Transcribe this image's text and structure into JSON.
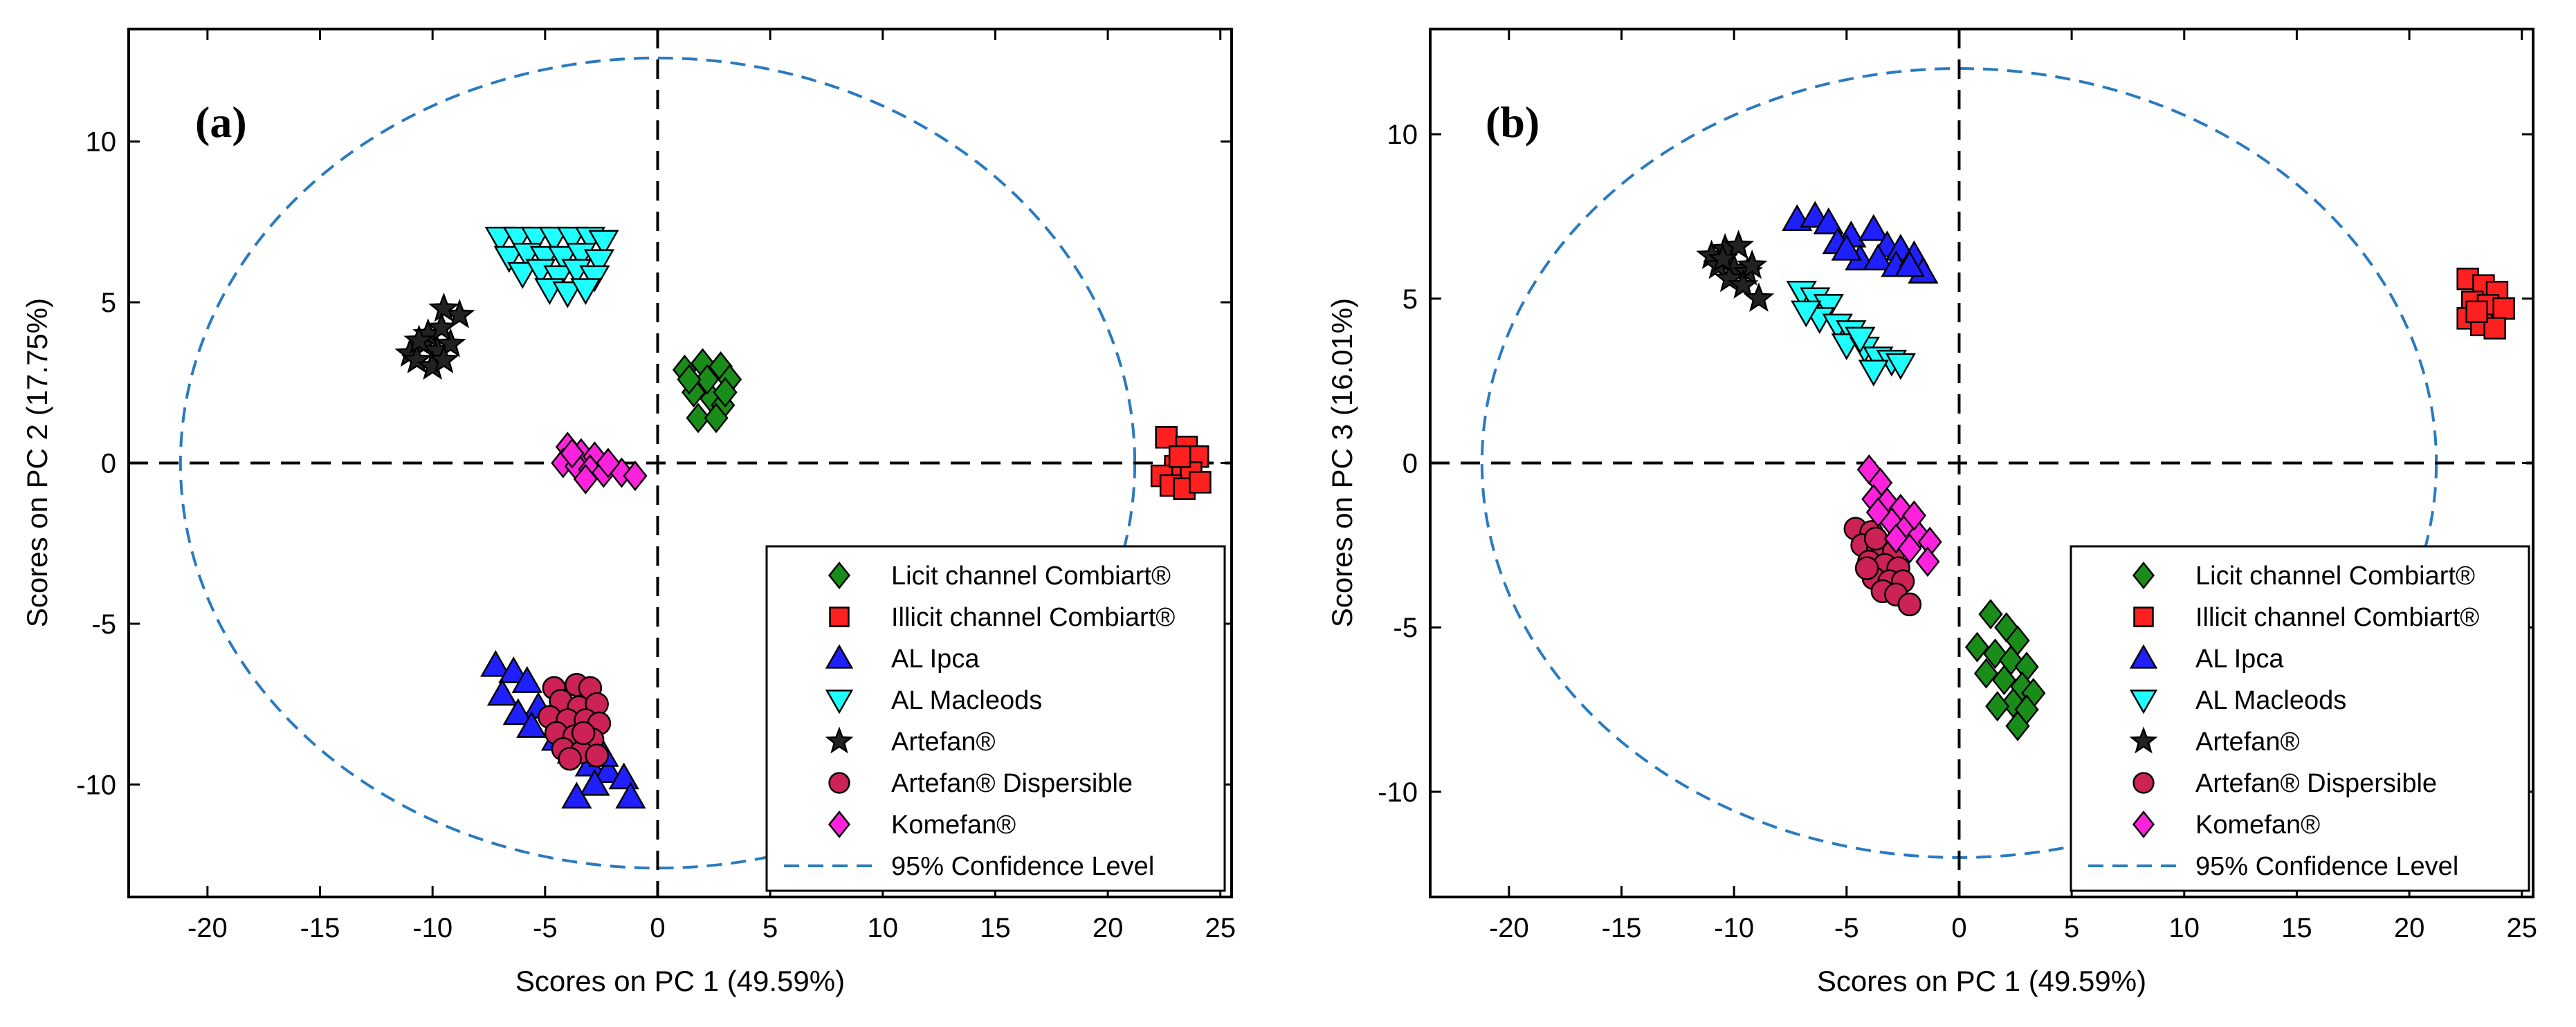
{
  "chart_data": [
    {
      "type": "scatter",
      "panel_label": "(a)",
      "xlabel": "Scores on PC 1 (49.59%)",
      "ylabel": "Scores on PC 2 (17.75%)",
      "xlim": [
        -23.5,
        25.5
      ],
      "ylim": [
        -13.5,
        13.5
      ],
      "xticks": [
        -20,
        -15,
        -10,
        -5,
        0,
        5,
        10,
        15,
        20,
        25
      ],
      "yticks": [
        -10,
        -5,
        0,
        5,
        10
      ],
      "ellipse": {
        "name": "95% Confidence Level",
        "cx": 0,
        "cy": 0,
        "rx": 21.2,
        "ry": 12.6
      },
      "series": [
        {
          "name": "Licit channel Combiart®",
          "marker": "diamond",
          "color": "#1a8c1a",
          "points": [
            [
              1.2,
              2.9
            ],
            [
              2.0,
              3.1
            ],
            [
              2.8,
              3.0
            ],
            [
              3.2,
              2.6
            ],
            [
              1.6,
              2.2
            ],
            [
              2.4,
              2.0
            ],
            [
              2.9,
              1.8
            ],
            [
              1.8,
              1.4
            ],
            [
              2.6,
              1.4
            ],
            [
              2.2,
              2.6
            ],
            [
              1.4,
              2.6
            ],
            [
              3.0,
              2.2
            ]
          ]
        },
        {
          "name": "Illicit channel Combiart®",
          "marker": "square",
          "color": "#ff2020",
          "points": [
            [
              22.6,
              0.8
            ],
            [
              23.5,
              0.5
            ],
            [
              24.0,
              0.2
            ],
            [
              23.0,
              -0.1
            ],
            [
              22.4,
              -0.4
            ],
            [
              23.7,
              -0.3
            ],
            [
              22.8,
              -0.7
            ],
            [
              23.4,
              -0.8
            ],
            [
              24.1,
              -0.6
            ],
            [
              23.2,
              0.2
            ]
          ]
        },
        {
          "name": "AL Ipca",
          "marker": "triangle-up",
          "color": "#2020ff",
          "points": [
            [
              -7.2,
              -6.3
            ],
            [
              -6.4,
              -6.5
            ],
            [
              -5.8,
              -6.8
            ],
            [
              -6.9,
              -7.2
            ],
            [
              -5.3,
              -7.6
            ],
            [
              -6.2,
              -7.8
            ],
            [
              -5.6,
              -8.2
            ],
            [
              -4.5,
              -8.6
            ],
            [
              -3.8,
              -9.0
            ],
            [
              -3.0,
              -9.4
            ],
            [
              -2.2,
              -9.6
            ],
            [
              -1.5,
              -9.8
            ],
            [
              -2.8,
              -10.0
            ],
            [
              -1.2,
              -10.4
            ],
            [
              -3.6,
              -10.4
            ],
            [
              -2.4,
              -9.1
            ]
          ]
        },
        {
          "name": "AL Macleods",
          "marker": "triangle-down",
          "color": "#20ffff",
          "points": [
            [
              -7.0,
              7.0
            ],
            [
              -6.2,
              7.0
            ],
            [
              -5.4,
              7.0
            ],
            [
              -4.6,
              7.0
            ],
            [
              -3.8,
              7.0
            ],
            [
              -3.0,
              7.0
            ],
            [
              -2.4,
              6.9
            ],
            [
              -6.6,
              6.4
            ],
            [
              -5.8,
              6.5
            ],
            [
              -5.0,
              6.4
            ],
            [
              -4.2,
              6.4
            ],
            [
              -3.4,
              6.5
            ],
            [
              -2.6,
              6.3
            ],
            [
              -6.0,
              5.9
            ],
            [
              -5.2,
              6.0
            ],
            [
              -4.4,
              5.8
            ],
            [
              -3.6,
              6.0
            ],
            [
              -2.8,
              5.8
            ],
            [
              -4.8,
              5.4
            ],
            [
              -4.0,
              5.3
            ],
            [
              -3.2,
              5.4
            ]
          ]
        },
        {
          "name": "Artefan®",
          "marker": "star",
          "color": "#222222",
          "points": [
            [
              -11.0,
              3.4
            ],
            [
              -10.4,
              3.7
            ],
            [
              -9.8,
              3.5
            ],
            [
              -9.2,
              3.7
            ],
            [
              -10.7,
              3.2
            ],
            [
              -10.0,
              3.0
            ],
            [
              -9.5,
              3.2
            ],
            [
              -8.8,
              4.6
            ],
            [
              -9.5,
              4.8
            ],
            [
              -10.2,
              4.0
            ],
            [
              -10.6,
              3.8
            ],
            [
              -9.6,
              4.2
            ]
          ]
        },
        {
          "name": "Artefan® Dispersible",
          "marker": "circle",
          "color": "#cc2255",
          "points": [
            [
              -4.6,
              -7.0
            ],
            [
              -3.6,
              -6.9
            ],
            [
              -3.0,
              -7.0
            ],
            [
              -4.3,
              -7.4
            ],
            [
              -3.5,
              -7.6
            ],
            [
              -2.7,
              -7.5
            ],
            [
              -4.8,
              -7.9
            ],
            [
              -4.0,
              -8.0
            ],
            [
              -3.2,
              -8.0
            ],
            [
              -2.6,
              -8.1
            ],
            [
              -4.5,
              -8.4
            ],
            [
              -3.7,
              -8.5
            ],
            [
              -2.9,
              -8.6
            ],
            [
              -4.2,
              -8.9
            ],
            [
              -3.4,
              -9.0
            ],
            [
              -2.7,
              -9.1
            ],
            [
              -3.9,
              -9.2
            ],
            [
              -3.3,
              -8.4
            ]
          ]
        },
        {
          "name": "Komefan®",
          "marker": "diamond",
          "color": "#ff22dd",
          "points": [
            [
              -4.0,
              0.5
            ],
            [
              -3.4,
              0.3
            ],
            [
              -2.8,
              0.2
            ],
            [
              -4.2,
              0.0
            ],
            [
              -3.6,
              -0.1
            ],
            [
              -3.0,
              -0.2
            ],
            [
              -2.4,
              -0.3
            ],
            [
              -1.6,
              -0.3
            ],
            [
              -1.0,
              -0.4
            ],
            [
              -3.2,
              -0.5
            ],
            [
              -3.8,
              0.3
            ],
            [
              -2.2,
              0.0
            ]
          ]
        }
      ]
    },
    {
      "type": "scatter",
      "panel_label": "(b)",
      "xlabel": "Scores on PC 1 (49.59%)",
      "ylabel": "Scores on PC 3 (16.01%)",
      "xlim": [
        -23.5,
        25.5
      ],
      "ylim": [
        -13.2,
        13.2
      ],
      "xticks": [
        -20,
        -15,
        -10,
        -5,
        0,
        5,
        10,
        15,
        20,
        25
      ],
      "yticks": [
        -10,
        -5,
        0,
        5,
        10
      ],
      "ellipse": {
        "name": "95% Confidence Level",
        "cx": 0,
        "cy": 0,
        "rx": 21.2,
        "ry": 12.0
      },
      "series": [
        {
          "name": "Licit channel Combiart®",
          "marker": "diamond",
          "color": "#1a8c1a",
          "points": [
            [
              1.4,
              -4.6
            ],
            [
              2.1,
              -5.0
            ],
            [
              2.6,
              -5.4
            ],
            [
              0.8,
              -5.6
            ],
            [
              1.6,
              -5.8
            ],
            [
              2.3,
              -6.0
            ],
            [
              3.0,
              -6.2
            ],
            [
              1.2,
              -6.4
            ],
            [
              2.0,
              -6.6
            ],
            [
              2.8,
              -6.8
            ],
            [
              3.3,
              -7.0
            ],
            [
              2.4,
              -7.3
            ],
            [
              1.7,
              -7.4
            ],
            [
              3.0,
              -7.5
            ],
            [
              2.6,
              -8.0
            ]
          ]
        },
        {
          "name": "Illicit channel Combiart®",
          "marker": "square",
          "color": "#ff2020",
          "points": [
            [
              22.6,
              5.6
            ],
            [
              23.3,
              5.4
            ],
            [
              23.9,
              5.2
            ],
            [
              22.8,
              4.9
            ],
            [
              23.5,
              4.8
            ],
            [
              24.2,
              4.7
            ],
            [
              22.6,
              4.4
            ],
            [
              23.2,
              4.2
            ],
            [
              23.8,
              4.1
            ],
            [
              23.0,
              4.6
            ]
          ]
        },
        {
          "name": "AL Ipca",
          "marker": "triangle-up",
          "color": "#2020ff",
          "points": [
            [
              -7.2,
              7.4
            ],
            [
              -6.4,
              7.5
            ],
            [
              -5.8,
              7.3
            ],
            [
              -4.8,
              6.9
            ],
            [
              -3.8,
              7.1
            ],
            [
              -3.2,
              6.6
            ],
            [
              -2.6,
              6.5
            ],
            [
              -5.4,
              6.7
            ],
            [
              -4.4,
              6.2
            ],
            [
              -3.6,
              6.2
            ],
            [
              -2.8,
              6.0
            ],
            [
              -2.0,
              6.3
            ],
            [
              -1.6,
              5.8
            ],
            [
              -2.2,
              6.0
            ],
            [
              -5.0,
              6.5
            ]
          ]
        },
        {
          "name": "AL Macleods",
          "marker": "triangle-down",
          "color": "#20ffff",
          "points": [
            [
              -7.0,
              5.2
            ],
            [
              -6.4,
              5.0
            ],
            [
              -5.8,
              4.8
            ],
            [
              -6.2,
              4.4
            ],
            [
              -5.4,
              4.2
            ],
            [
              -4.8,
              4.0
            ],
            [
              -5.0,
              3.6
            ],
            [
              -4.2,
              3.5
            ],
            [
              -3.6,
              3.2
            ],
            [
              -3.0,
              3.1
            ],
            [
              -2.6,
              3.0
            ],
            [
              -3.8,
              2.8
            ],
            [
              -4.4,
              3.8
            ],
            [
              -6.8,
              4.6
            ]
          ]
        },
        {
          "name": "Artefan®",
          "marker": "star",
          "color": "#222222",
          "points": [
            [
              -11.0,
              6.3
            ],
            [
              -10.4,
              6.5
            ],
            [
              -9.8,
              6.6
            ],
            [
              -10.7,
              6.0
            ],
            [
              -10.0,
              5.9
            ],
            [
              -9.4,
              5.8
            ],
            [
              -10.2,
              5.6
            ],
            [
              -9.6,
              5.4
            ],
            [
              -8.9,
              5.0
            ],
            [
              -9.2,
              6.0
            ],
            [
              -10.5,
              6.2
            ]
          ]
        },
        {
          "name": "Artefan® Dispersible",
          "marker": "circle",
          "color": "#cc2255",
          "points": [
            [
              -4.6,
              -2.0
            ],
            [
              -3.9,
              -2.1
            ],
            [
              -4.3,
              -2.5
            ],
            [
              -3.6,
              -2.6
            ],
            [
              -2.9,
              -2.7
            ],
            [
              -4.0,
              -3.0
            ],
            [
              -3.3,
              -3.1
            ],
            [
              -2.7,
              -3.2
            ],
            [
              -3.8,
              -3.5
            ],
            [
              -3.1,
              -3.6
            ],
            [
              -2.5,
              -3.6
            ],
            [
              -3.4,
              -3.9
            ],
            [
              -2.8,
              -4.0
            ],
            [
              -2.2,
              -4.3
            ],
            [
              -4.1,
              -3.2
            ],
            [
              -3.7,
              -2.3
            ]
          ]
        },
        {
          "name": "Komefan®",
          "marker": "diamond",
          "color": "#ff22dd",
          "points": [
            [
              -4.0,
              -0.2
            ],
            [
              -3.5,
              -0.6
            ],
            [
              -3.8,
              -1.1
            ],
            [
              -3.2,
              -1.2
            ],
            [
              -2.6,
              -1.4
            ],
            [
              -3.0,
              -1.8
            ],
            [
              -2.4,
              -2.0
            ],
            [
              -1.8,
              -2.2
            ],
            [
              -2.8,
              -2.3
            ],
            [
              -1.3,
              -2.4
            ],
            [
              -2.2,
              -2.6
            ],
            [
              -1.4,
              -3.0
            ],
            [
              -3.6,
              -1.5
            ],
            [
              -2.0,
              -1.6
            ]
          ]
        }
      ]
    }
  ]
}
